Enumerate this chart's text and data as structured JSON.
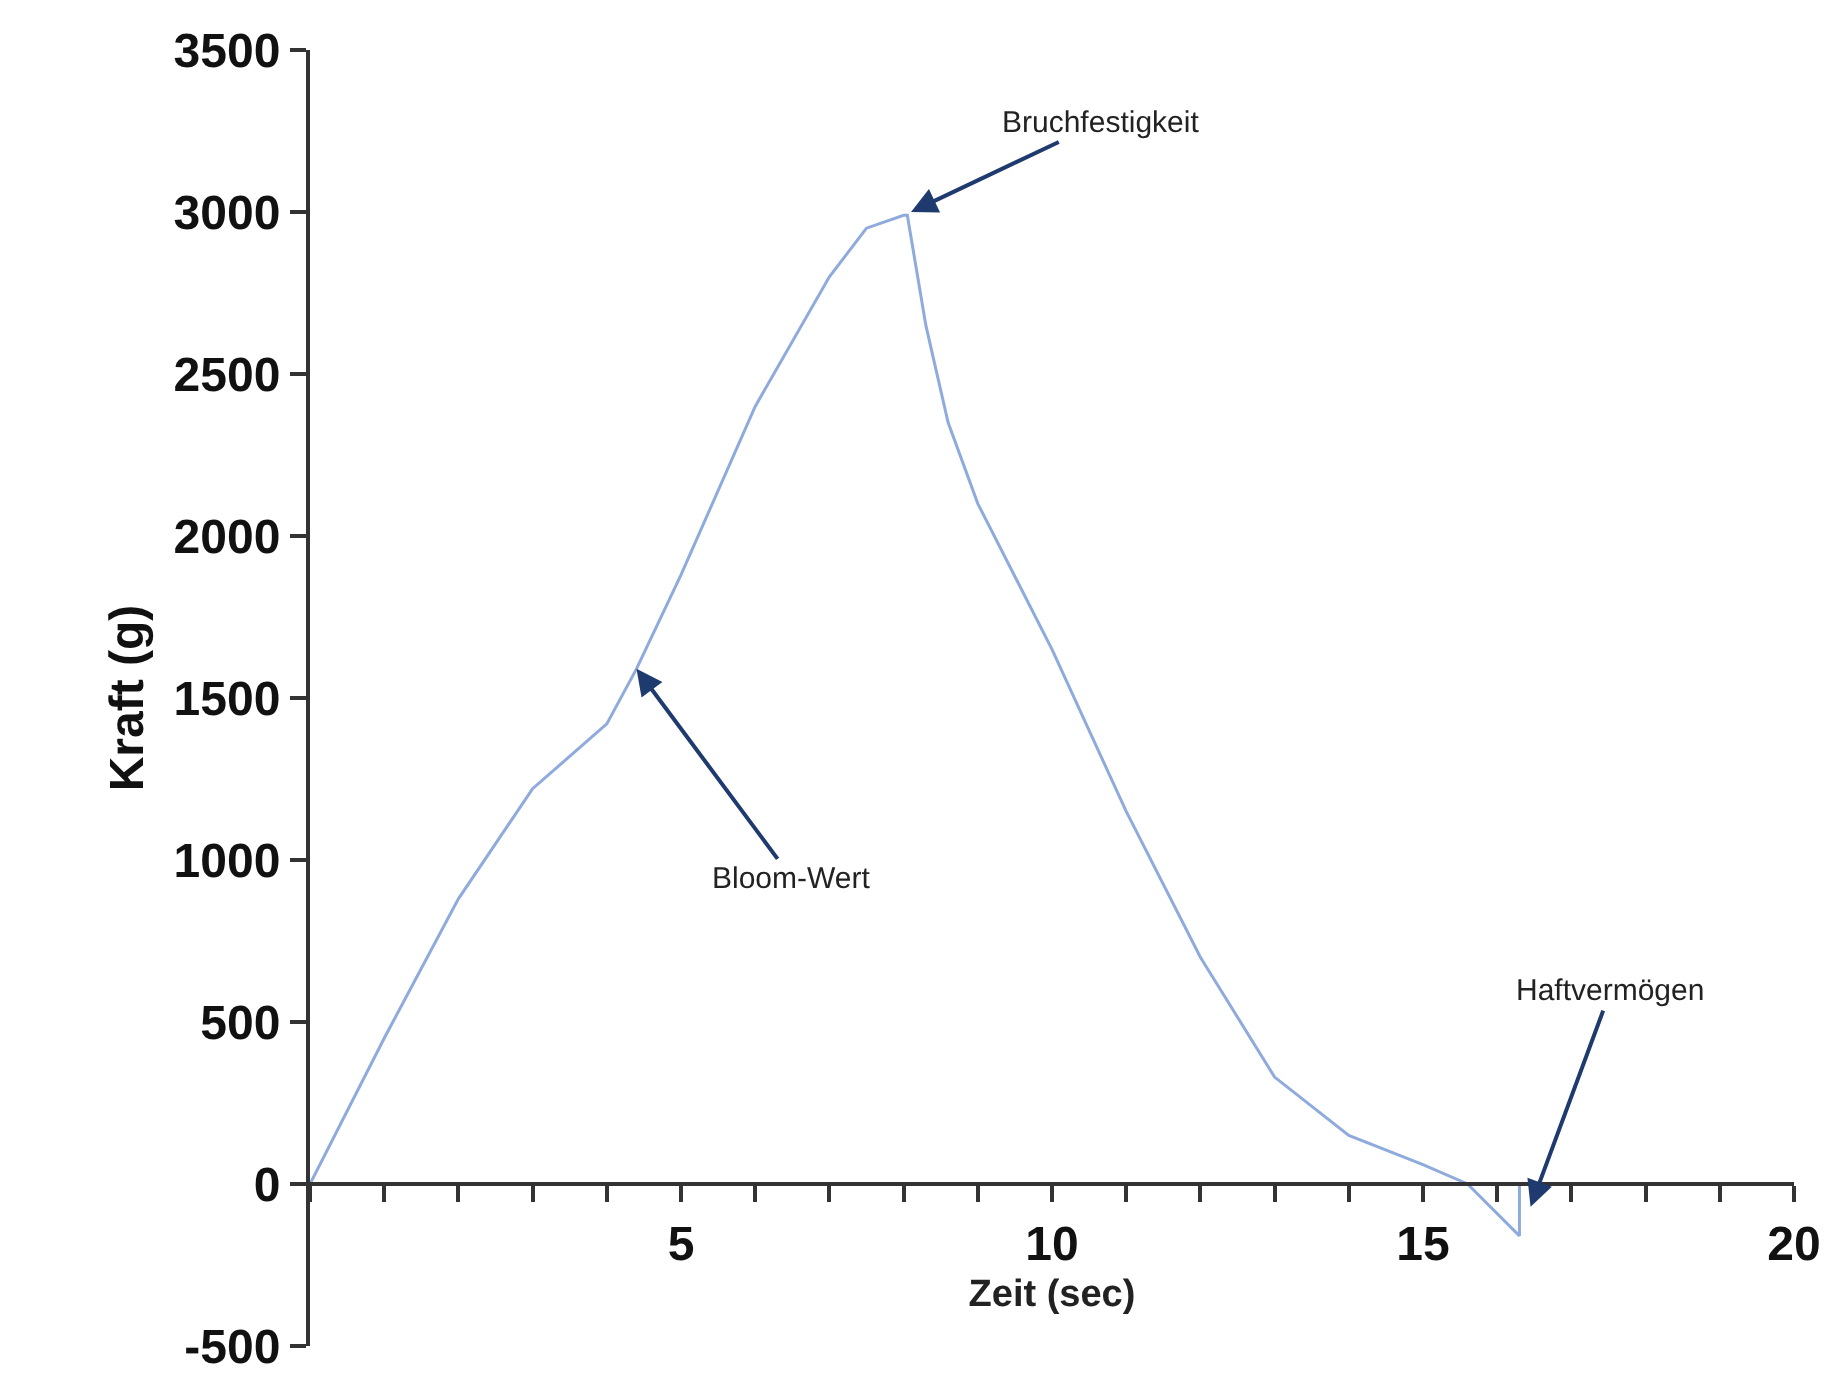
{
  "chart_data": {
    "type": "line",
    "xlabel": "Zeit (sec)",
    "ylabel": "Kraft (g)",
    "x": [
      0,
      1,
      2,
      3,
      4,
      4.4,
      5,
      6,
      7,
      7.5,
      8,
      8.05,
      8.3,
      8.6,
      9,
      10,
      11,
      12,
      13,
      14,
      15,
      15.6,
      16.3,
      16.3,
      16.4
    ],
    "series": [
      {
        "color": "#8faadc",
        "values": [
          0,
          450,
          880,
          1220,
          1420,
          1590,
          1880,
          2400,
          2800,
          2950,
          2990,
          2990,
          2650,
          2350,
          2100,
          1650,
          1150,
          700,
          330,
          150,
          60,
          0,
          -160,
          0,
          0
        ]
      }
    ],
    "xlim": [
      0,
      20
    ],
    "ylim": [
      -500,
      3500
    ],
    "xticks": [
      {
        "value": 0,
        "label": null
      },
      {
        "value": 1,
        "label": null
      },
      {
        "value": 2,
        "label": null
      },
      {
        "value": 3,
        "label": null
      },
      {
        "value": 4,
        "label": null
      },
      5,
      {
        "value": 6,
        "label": null
      },
      {
        "value": 7,
        "label": null
      },
      {
        "value": 8,
        "label": null
      },
      {
        "value": 9,
        "label": null
      },
      10,
      {
        "value": 11,
        "label": null
      },
      {
        "value": 12,
        "label": null
      },
      {
        "value": 13,
        "label": null
      },
      {
        "value": 14,
        "label": null
      },
      15,
      {
        "value": 16,
        "label": null
      },
      {
        "value": 17,
        "label": null
      },
      {
        "value": 18,
        "label": null
      },
      {
        "value": 19,
        "label": null
      },
      20
    ],
    "yticks": [
      -500,
      0,
      500,
      1000,
      1500,
      2000,
      2500,
      3000,
      3500
    ],
    "annotations": [
      {
        "text": "Bruchfestigkeit",
        "x": 8.1,
        "y": 3000
      },
      {
        "text": "Bloom-Wert",
        "x": 4.4,
        "y": 1590
      },
      {
        "text": "Haftvermögen",
        "x": 16.45,
        "y": -70
      }
    ],
    "marker": "none",
    "line_style": "solid"
  }
}
